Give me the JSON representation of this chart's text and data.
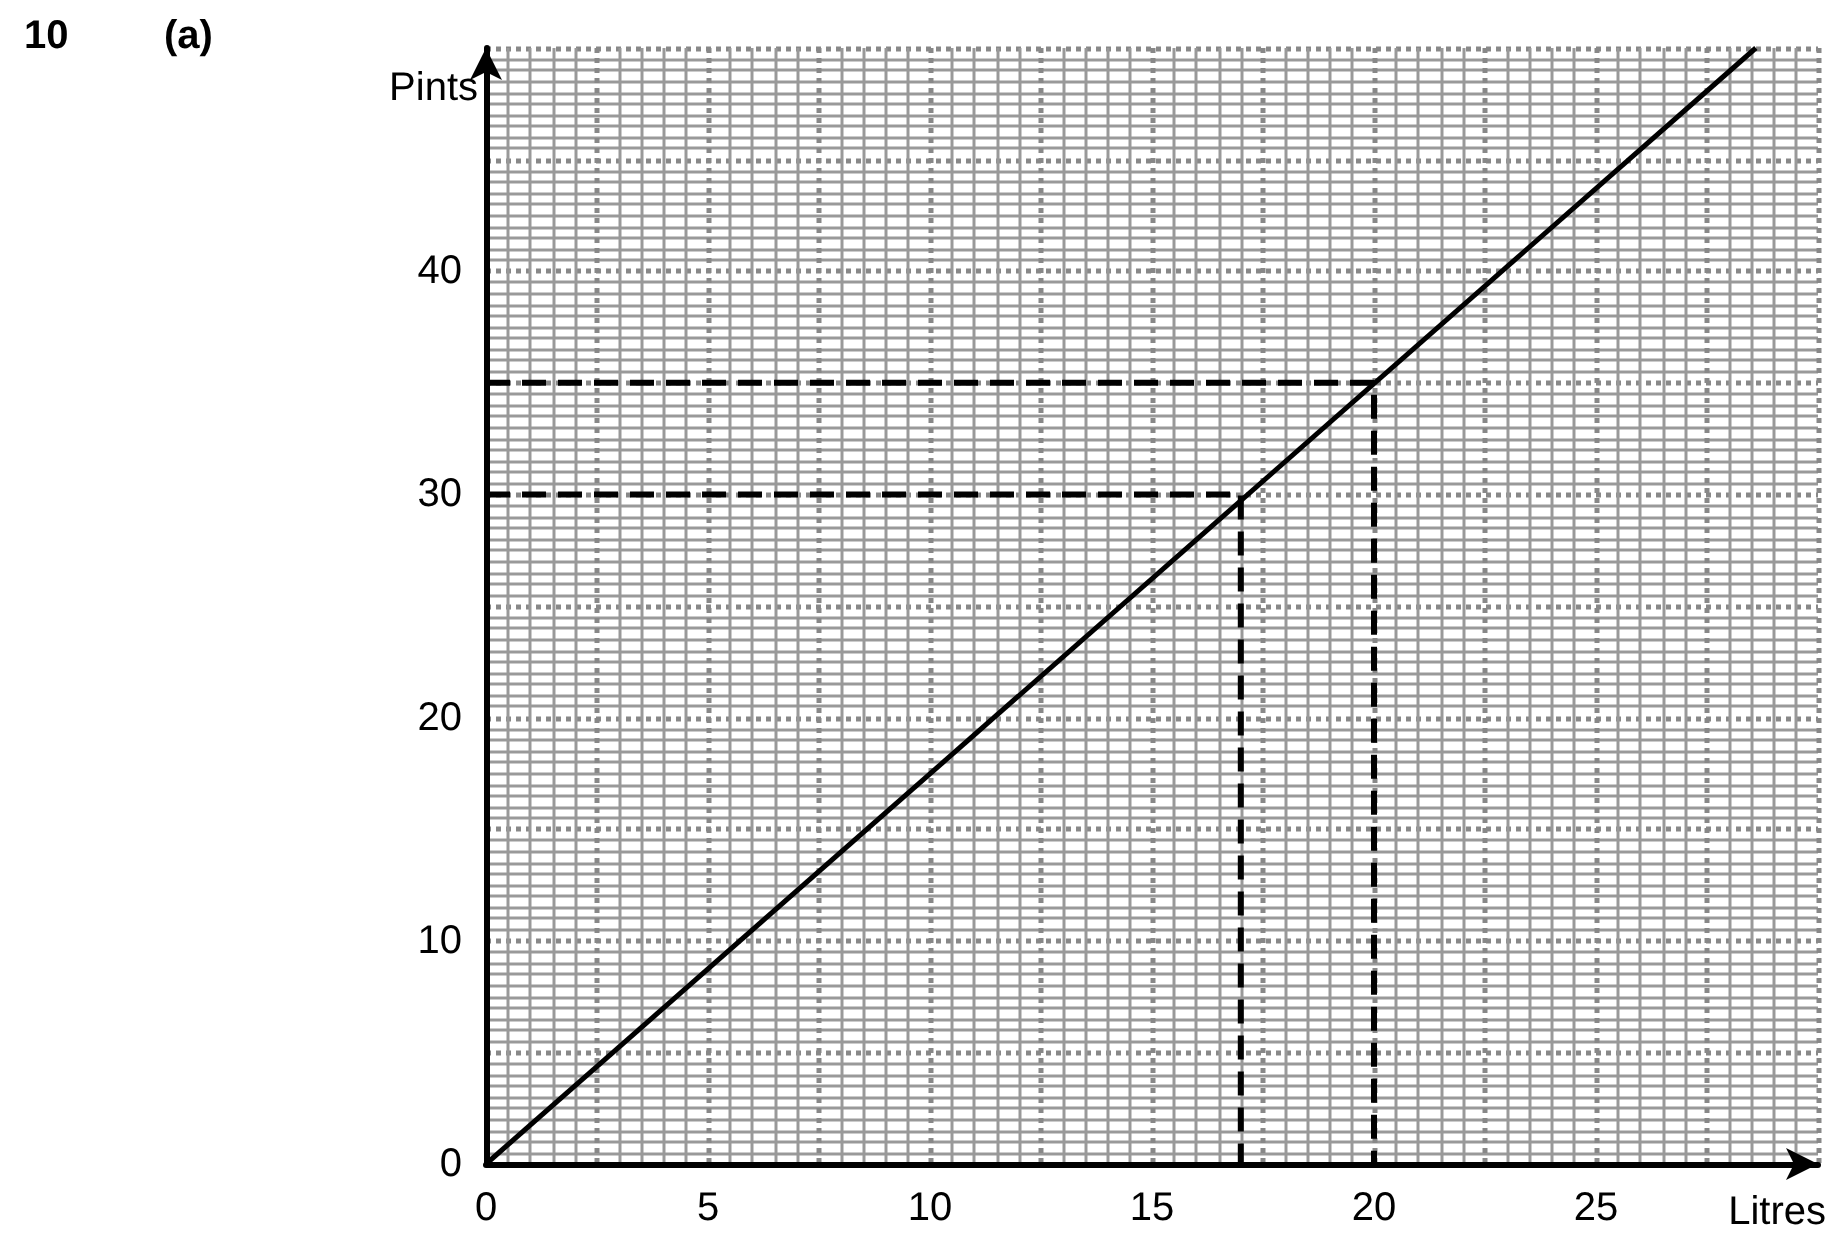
{
  "chart_data": {
    "type": "line",
    "xlabel": "Litres",
    "ylabel": "Pints",
    "annotations": [
      "10",
      "(a)"
    ],
    "xlim": [
      0,
      30
    ],
    "ylim": [
      0,
      50
    ],
    "xticks": [
      0,
      {
        "value": 2.5,
        "label": null
      },
      5,
      {
        "value": 7.5,
        "label": null
      },
      10,
      {
        "value": 12.5,
        "label": null
      },
      15,
      {
        "value": 17.5,
        "label": null
      },
      20,
      {
        "value": 22.5,
        "label": null
      },
      25,
      {
        "value": 27.5,
        "label": null
      },
      {
        "value": 30,
        "label": null
      }
    ],
    "yticks": [
      0,
      {
        "value": 5,
        "label": null
      },
      10,
      {
        "value": 15,
        "label": null
      },
      20,
      {
        "value": 25,
        "label": null
      },
      30,
      {
        "value": 35,
        "label": null
      },
      40,
      {
        "value": 45,
        "label": null
      },
      {
        "value": 50,
        "label": null
      }
    ],
    "grid": true,
    "marker": "none",
    "series": [
      {
        "color": "#000000",
        "x": [
          0,
          28.6
        ],
        "values": [
          0,
          50
        ],
        "line_style": "solid"
      },
      {
        "color": "#000000",
        "x": [
          0,
          20,
          20
        ],
        "values": [
          35,
          35,
          0
        ],
        "line_style": "dashed"
      },
      {
        "color": "#000000",
        "x": [
          0,
          17,
          17
        ],
        "values": [
          30,
          30,
          0
        ],
        "line_style": "dashed"
      }
    ]
  }
}
